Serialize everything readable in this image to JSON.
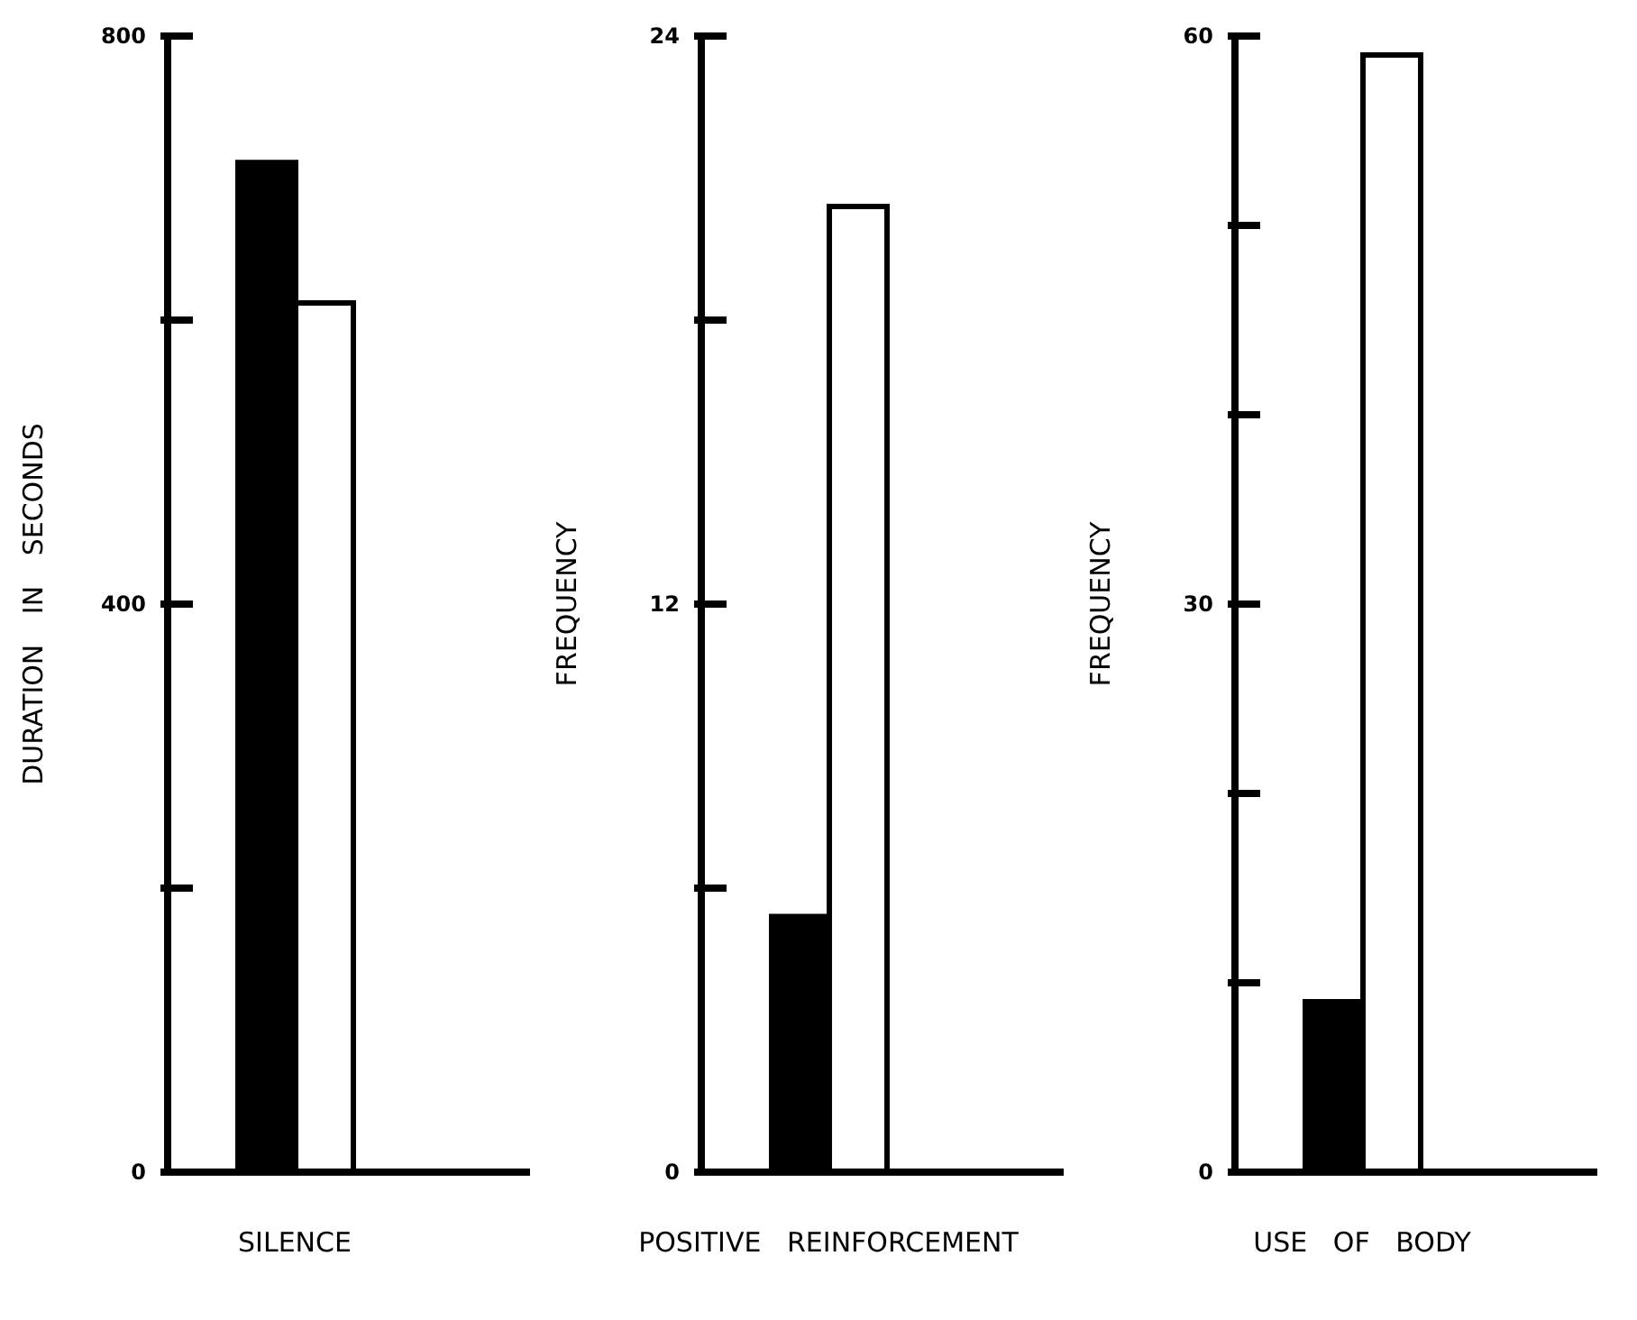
{
  "chart_data": [
    {
      "type": "bar",
      "ylabel": "DURATION IN SECONDS",
      "categories": [
        "SILENCE"
      ],
      "series": [
        {
          "color": "#000000",
          "values": [
            711
          ]
        },
        {
          "color": "#ffffff",
          "values": [
            612
          ]
        }
      ],
      "ylim": [
        0,
        800
      ],
      "yticks": [
        0,
        {
          "value": 200,
          "label": null
        },
        400,
        {
          "value": 600,
          "label": null
        },
        800
      ],
      "grid": false,
      "legend": false
    },
    {
      "type": "bar",
      "ylabel": "FREQUENCY",
      "categories": [
        "POSITIVE   REINFORCEMENT"
      ],
      "series": [
        {
          "color": "#000000",
          "values": [
            5.4
          ]
        },
        {
          "color": "#ffffff",
          "values": [
            20.4
          ]
        }
      ],
      "ylim": [
        0,
        24
      ],
      "yticks": [
        0,
        {
          "value": 6,
          "label": null
        },
        12,
        {
          "value": 18,
          "label": null
        },
        24
      ],
      "grid": false,
      "legend": false
    },
    {
      "type": "bar",
      "ylabel": "FREQUENCY",
      "categories": [
        "USE   OF   BODY"
      ],
      "series": [
        {
          "color": "#000000",
          "values": [
            9
          ]
        },
        {
          "color": "#ffffff",
          "values": [
            59
          ]
        }
      ],
      "ylim": [
        0,
        60
      ],
      "yticks": [
        0,
        {
          "value": 10,
          "label": null
        },
        {
          "value": 20,
          "label": null
        },
        30,
        {
          "value": 40,
          "label": null
        },
        {
          "value": 50,
          "label": null
        },
        60
      ],
      "grid": false,
      "legend": false
    }
  ]
}
